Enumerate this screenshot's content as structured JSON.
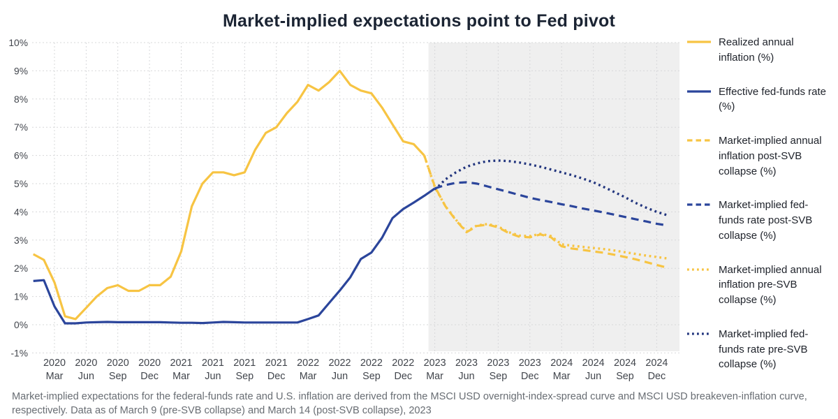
{
  "title": "Market-implied expectations point to Fed pivot",
  "footer": "Market-implied expectations for the federal-funds rate and U.S. inflation are derived from the MSCI USD overnight-index-spread curve and MSCI USD breakeven-inflation curve, respectively. Data as of March 9 (pre-SVB collapse) and March 14 (post-SVB collapse), 2023",
  "colors": {
    "accent_yellow": "#F7C443",
    "accent_blue": "#2B459B",
    "accent_blue_dark": "#22357E",
    "forecast_shade": "#EFEFEF",
    "grid": "#D7D8DA",
    "title_text": "#1B2433",
    "axis_text": "#41454C",
    "footer_text": "#686D73"
  },
  "chart_data": {
    "type": "line",
    "title": "Market-implied expectations point to Fed pivot",
    "xlabel": "",
    "ylabel": "",
    "ylim": [
      -1,
      10
    ],
    "grid": true,
    "legend_position": "right",
    "x_unit": "months since 2020 Jan",
    "forecast_region": {
      "start_m": 37.4
    },
    "y_ticks": [
      {
        "label": "10%",
        "value": 10
      },
      {
        "label": "9%",
        "value": 9
      },
      {
        "label": "8%",
        "value": 8
      },
      {
        "label": "7%",
        "value": 7
      },
      {
        "label": "6%",
        "value": 6
      },
      {
        "label": "5%",
        "value": 5
      },
      {
        "label": "4%",
        "value": 4
      },
      {
        "label": "3%",
        "value": 3
      },
      {
        "label": "2%",
        "value": 2
      },
      {
        "label": "1%",
        "value": 1
      },
      {
        "label": "0%",
        "value": 0
      },
      {
        "label": "-1%",
        "value": -1
      }
    ],
    "x_ticks": [
      {
        "year": "2020",
        "month": "Mar",
        "m": 2
      },
      {
        "year": "2020",
        "month": "Jun",
        "m": 5
      },
      {
        "year": "2020",
        "month": "Sep",
        "m": 8
      },
      {
        "year": "2020",
        "month": "Dec",
        "m": 11
      },
      {
        "year": "2021",
        "month": "Mar",
        "m": 14
      },
      {
        "year": "2021",
        "month": "Jun",
        "m": 17
      },
      {
        "year": "2021",
        "month": "Sep",
        "m": 20
      },
      {
        "year": "2021",
        "month": "Dec",
        "m": 23
      },
      {
        "year": "2022",
        "month": "Mar",
        "m": 26
      },
      {
        "year": "2022",
        "month": "Jun",
        "m": 29
      },
      {
        "year": "2022",
        "month": "Sep",
        "m": 32
      },
      {
        "year": "2022",
        "month": "Dec",
        "m": 35
      },
      {
        "year": "2023",
        "month": "Mar",
        "m": 38
      },
      {
        "year": "2023",
        "month": "Jun",
        "m": 41
      },
      {
        "year": "2023",
        "month": "Sep",
        "m": 44
      },
      {
        "year": "2023",
        "month": "Dec",
        "m": 47
      },
      {
        "year": "2024",
        "month": "Mar",
        "m": 50
      },
      {
        "year": "2024",
        "month": "Jun",
        "m": 53
      },
      {
        "year": "2024",
        "month": "Sep",
        "m": 56
      },
      {
        "year": "2024",
        "month": "Dec",
        "m": 59
      }
    ],
    "series": [
      {
        "key": "implied-fed-funds-pre-svb",
        "name": "Market-implied fed-funds rate pre-SVB collapse (%)",
        "style": "dotted",
        "color": "#22357E",
        "start_m": 38,
        "values": [
          4.78,
          5.15,
          5.4,
          5.6,
          5.72,
          5.8,
          5.82,
          5.8,
          5.75,
          5.68,
          5.6,
          5.5,
          5.4,
          5.3,
          5.18,
          5.05,
          4.88,
          4.7,
          4.52,
          4.32,
          4.15,
          4.0,
          3.88
        ]
      },
      {
        "key": "implied-fed-funds-post-svb",
        "name": "Market-implied fed-funds rate post-SVB collapse (%)",
        "style": "dashed",
        "color": "#2B459B",
        "start_m": 38,
        "values": [
          4.83,
          4.95,
          5.03,
          5.05,
          5.0,
          4.9,
          4.8,
          4.7,
          4.6,
          4.5,
          4.42,
          4.35,
          4.27,
          4.2,
          4.12,
          4.05,
          3.98,
          3.9,
          3.82,
          3.74,
          3.66,
          3.58,
          3.52
        ]
      },
      {
        "key": "implied-inflation-pre-svb",
        "name": "Market-implied annual inflation pre-SVB collapse (%)",
        "style": "dotted",
        "color": "#F7C443",
        "start_m": 37,
        "values": [
          6.0,
          4.88,
          4.2,
          3.72,
          3.3,
          3.52,
          3.57,
          3.48,
          3.28,
          3.16,
          3.14,
          3.22,
          3.14,
          2.85,
          2.8,
          2.76,
          2.72,
          2.68,
          2.63,
          2.57,
          2.51,
          2.45,
          2.4,
          2.35
        ]
      },
      {
        "key": "implied-inflation-post-svb",
        "name": "Market-implied annual inflation post-SVB collapse (%)",
        "style": "dashed",
        "color": "#F7C443",
        "start_m": 37,
        "values": [
          6.0,
          4.9,
          4.2,
          3.7,
          3.28,
          3.5,
          3.55,
          3.45,
          3.25,
          3.12,
          3.1,
          3.2,
          3.1,
          2.78,
          2.7,
          2.65,
          2.6,
          2.55,
          2.48,
          2.4,
          2.32,
          2.22,
          2.12,
          2.02
        ]
      },
      {
        "key": "effective-fed-funds",
        "name": "Effective fed-funds rate (%)",
        "style": "solid",
        "color": "#2B459B",
        "start_m": 0,
        "values": [
          1.55,
          1.58,
          0.65,
          0.05,
          0.05,
          0.08,
          0.09,
          0.1,
          0.09,
          0.09,
          0.09,
          0.09,
          0.09,
          0.08,
          0.07,
          0.07,
          0.06,
          0.08,
          0.1,
          0.09,
          0.08,
          0.08,
          0.08,
          0.08,
          0.08,
          0.08,
          0.2,
          0.33,
          0.77,
          1.21,
          1.68,
          2.33,
          2.56,
          3.08,
          3.78,
          4.1,
          4.33,
          4.57,
          4.83
        ]
      },
      {
        "key": "realized-inflation",
        "name": "Realized annual inflation (%)",
        "style": "solid",
        "color": "#F7C443",
        "start_m": 0,
        "values": [
          2.5,
          2.3,
          1.5,
          0.3,
          0.2,
          0.6,
          1.0,
          1.3,
          1.4,
          1.2,
          1.2,
          1.4,
          1.4,
          1.7,
          2.6,
          4.2,
          5.0,
          5.4,
          5.4,
          5.3,
          5.4,
          6.2,
          6.8,
          7.0,
          7.5,
          7.9,
          8.5,
          8.3,
          8.6,
          9.0,
          8.5,
          8.3,
          8.2,
          7.7,
          7.1,
          6.5,
          6.4,
          6.0
        ]
      }
    ],
    "legend_order": [
      "realized-inflation",
      "effective-fed-funds",
      "implied-inflation-post-svb",
      "implied-fed-funds-post-svb",
      "implied-inflation-pre-svb",
      "implied-fed-funds-pre-svb"
    ]
  }
}
